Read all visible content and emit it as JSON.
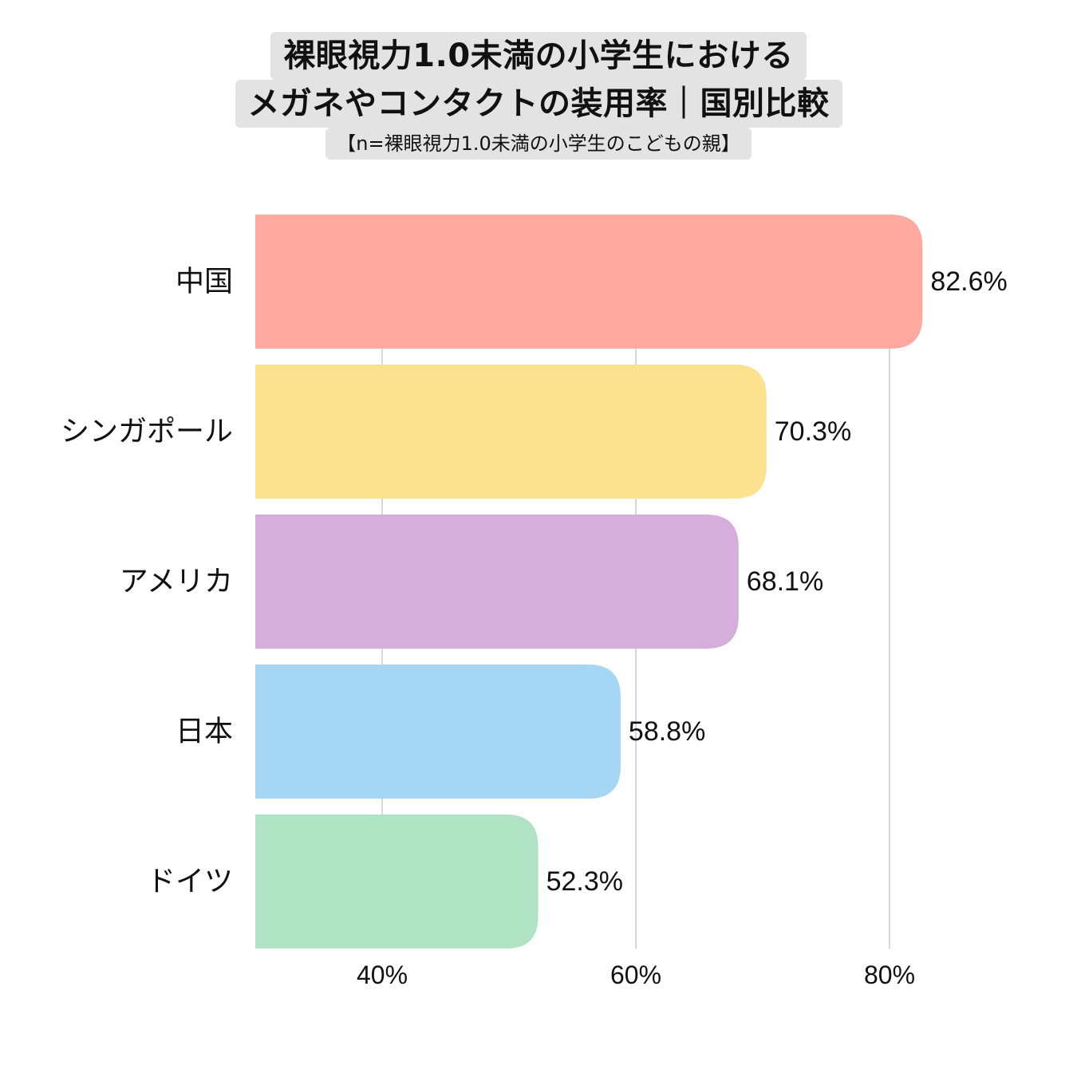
{
  "title": {
    "line1": "裸眼視力1.0未満の小学生における",
    "line2": "メガネやコンタクトの装用率｜国別比較",
    "subtitle": "【n=裸眼視力1.0未満の小学生のこどもの親】"
  },
  "chart_data": {
    "type": "bar",
    "orientation": "horizontal",
    "categories": [
      "中国",
      "シンガポール",
      "アメリカ",
      "日本",
      "ドイツ"
    ],
    "values": [
      82.6,
      70.3,
      68.1,
      58.8,
      52.3
    ],
    "value_labels": [
      "82.6%",
      "70.3%",
      "68.1%",
      "58.8%",
      "52.3%"
    ],
    "colors": [
      "#fda9a0",
      "#fce28f",
      "#d6aedc",
      "#a5d6f4",
      "#afe3c3"
    ],
    "xlim": [
      30,
      90
    ],
    "xticks": [
      40,
      60,
      80
    ],
    "xtick_labels": [
      "40%",
      "60%",
      "80%"
    ],
    "grid": "vertical",
    "grid_color": "#cccccc"
  }
}
